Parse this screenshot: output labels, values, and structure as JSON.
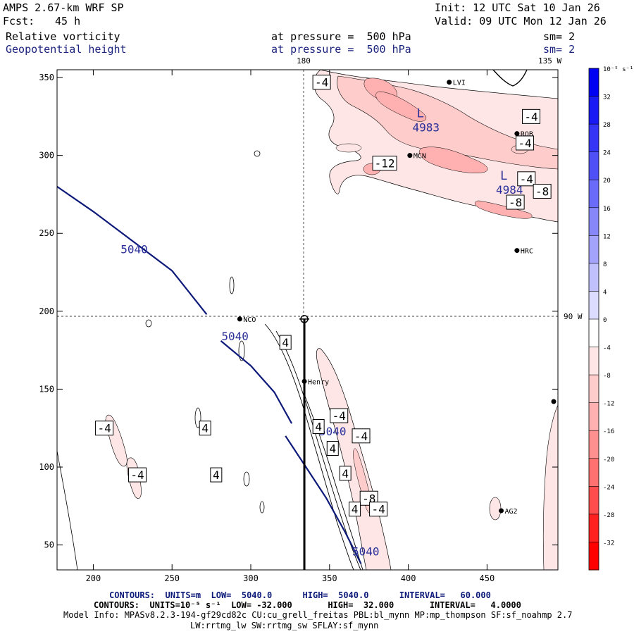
{
  "header": {
    "model": "AMPS 2.67-km WRF SP",
    "init": "Init: 12 UTC Sat 10 Jan 26",
    "fcst_label": "Fcst:",
    "fcst_value": "45 h",
    "valid": "Valid: 09 UTC Mon 12 Jan 26",
    "field1": "Relative vorticity",
    "field1_pressure": "at pressure =  500 hPa",
    "field1_sm": "sm= 2",
    "field2": "Geopotential height",
    "field2_pressure": "at pressure =  500 hPa",
    "field2_sm": "sm= 2"
  },
  "map_labels": {
    "lon_180": "180",
    "lon_135w": "135 W",
    "lon_90w": "90 W"
  },
  "stations": [
    {
      "name": "LVI",
      "x": 426,
      "y": 347
    },
    {
      "name": "ROB",
      "x": 469,
      "y": 314
    },
    {
      "name": "MCN",
      "x": 401,
      "y": 300
    },
    {
      "name": "HRC",
      "x": 469,
      "y": 239
    },
    {
      "name": "NCO",
      "x": 293,
      "y": 195
    },
    {
      "name": "Henry",
      "x": 334,
      "y": 155
    },
    {
      "name": "AG2",
      "x": 459,
      "y": 72
    }
  ],
  "footer": {
    "line1": "CONTOURS:  UNITS=m  LOW=  5040.0      HIGH=  5040.0      INTERVAL=   60.000",
    "line2": "CONTOURS:  UNITS=10⁻⁵ s⁻¹  LOW= -32.000       HIGH=  32.000       INTERVAL=   4.0000",
    "line3": "Model Info: MPASv8.2.3-194-gf29cd82c CU:cu_grell_freitas PBL:bl_mynn MP:mp_thompson SF:sf_noahmp 2.7",
    "line4": "LW:rrtmg_lw SW:rrtmg_sw SFLAY:sf_mynn"
  },
  "chart_data": {
    "type": "contour",
    "title": "Relative vorticity / Geopotential height at 500 hPa",
    "xlim": [
      177,
      495
    ],
    "ylim": [
      34,
      355
    ],
    "xticks": [
      200,
      250,
      300,
      350,
      400,
      450
    ],
    "yticks": [
      50,
      100,
      150,
      200,
      250,
      300,
      350
    ],
    "cross_section_x": 334,
    "crosshair": {
      "x": 334,
      "y": 195
    },
    "height_contours": [
      {
        "level": "5040",
        "points": [
          [
            177,
            280
          ],
          [
            200,
            264
          ],
          [
            225,
            245
          ],
          [
            250,
            226
          ],
          [
            272,
            198
          ]
        ]
      },
      {
        "level": "5040",
        "points": [
          [
            281,
            181
          ],
          [
            300,
            165
          ],
          [
            315,
            148
          ],
          [
            326,
            128
          ]
        ]
      },
      {
        "level": "5040",
        "points": [
          [
            322,
            120
          ],
          [
            335,
            100
          ],
          [
            348,
            80
          ],
          [
            360,
            58
          ],
          [
            370,
            38
          ]
        ]
      }
    ],
    "height_labels": [
      {
        "text": "5040",
        "x": 226,
        "y": 240
      },
      {
        "text": "5040",
        "x": 290,
        "y": 184
      },
      {
        "text": "5040",
        "x": 352,
        "y": 123
      },
      {
        "text": "5040",
        "x": 373,
        "y": 46
      }
    ],
    "vorticity_labels": [
      {
        "text": "-4",
        "x": 345,
        "y": 347
      },
      {
        "text": "-4",
        "x": 478,
        "y": 325
      },
      {
        "text": "-4",
        "x": 474,
        "y": 308
      },
      {
        "text": "-12",
        "x": 385,
        "y": 295
      },
      {
        "text": "-4",
        "x": 475,
        "y": 285
      },
      {
        "text": "-8",
        "x": 485,
        "y": 277
      },
      {
        "text": "-8",
        "x": 468,
        "y": 270
      },
      {
        "text": "4",
        "x": 322,
        "y": 180
      },
      {
        "text": "-4",
        "x": 207,
        "y": 125
      },
      {
        "text": "4",
        "x": 271,
        "y": 125
      },
      {
        "text": "-4",
        "x": 228,
        "y": 95
      },
      {
        "text": "4",
        "x": 278,
        "y": 95
      },
      {
        "text": "-4",
        "x": 356,
        "y": 133
      },
      {
        "text": "4",
        "x": 343,
        "y": 126
      },
      {
        "text": "-4",
        "x": 370,
        "y": 120
      },
      {
        "text": "4",
        "x": 352,
        "y": 112
      },
      {
        "text": "4",
        "x": 360,
        "y": 96
      },
      {
        "text": "-8",
        "x": 375,
        "y": 80
      },
      {
        "text": "4",
        "x": 366,
        "y": 73
      },
      {
        "text": "-4",
        "x": 381,
        "y": 73
      }
    ],
    "low_centers": [
      {
        "text": "L",
        "value": "4983",
        "x": 405,
        "y": 320
      },
      {
        "text": "L",
        "value": "4984",
        "x": 458,
        "y": 280
      }
    ],
    "colorbar": {
      "unit": "10⁻⁵ s⁻¹",
      "levels": [
        32,
        28,
        24,
        20,
        16,
        12,
        8,
        4,
        0,
        -4,
        -8,
        -12,
        -16,
        -20,
        -24,
        -28,
        -32
      ],
      "colors": [
        "#0000f2",
        "#1a1af5",
        "#3535f6",
        "#5050f7",
        "#6b6bf9",
        "#8787fa",
        "#a3a3fb",
        "#c0c0fd",
        "#dcdcfe",
        "#ffffff",
        "#ffe6e6",
        "#ffcccc",
        "#ffb0b0",
        "#ff9090",
        "#ff7070",
        "#ff4c4c",
        "#ff2020",
        "#ff0000"
      ]
    }
  }
}
